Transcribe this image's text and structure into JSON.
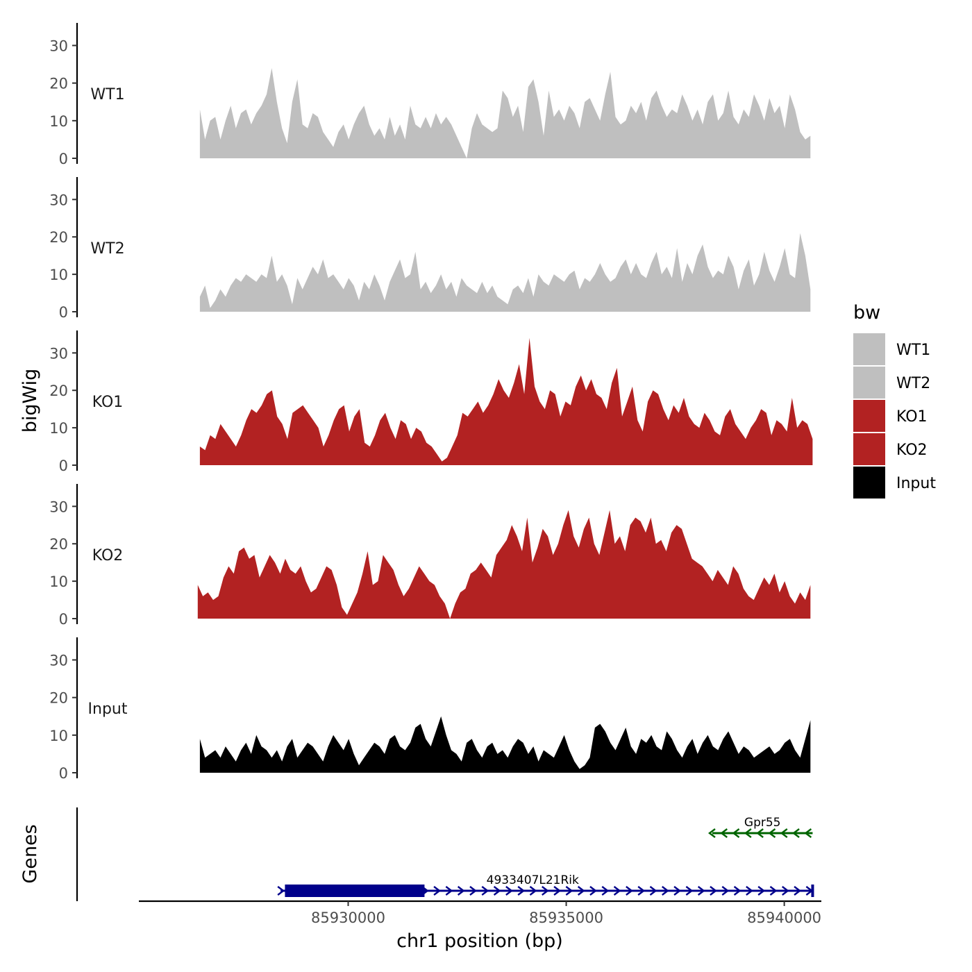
{
  "chart_data": {
    "type": "area",
    "title": "",
    "ylabel": "bigWig",
    "genes_label": "Genes",
    "xlabel": "chr1 position (bp)",
    "xlim": [
      85925200,
      85940850
    ],
    "ylim": [
      0,
      36
    ],
    "yticks": [
      0,
      10,
      20,
      30
    ],
    "ytick_labels": [
      "0",
      "10",
      "20",
      "30"
    ],
    "xticks": [
      85930000,
      85935000,
      85940000
    ],
    "xtick_labels": [
      "85930000",
      "85935000",
      "85940000"
    ],
    "grid": false,
    "legend": {
      "title": "bw",
      "position": "right",
      "entries": [
        {
          "label": "WT1",
          "color": "#bfbfbf"
        },
        {
          "label": "WT2",
          "color": "#bfbfbf"
        },
        {
          "label": "KO1",
          "color": "#b22222"
        },
        {
          "label": "KO2",
          "color": "#b22222"
        },
        {
          "label": "Input",
          "color": "#000000"
        }
      ]
    },
    "series": [
      {
        "name": "WT1",
        "color": "#bfbfbf",
        "x_start": 85926600,
        "x_end": 85940600,
        "values": [
          13,
          5,
          10,
          11,
          5,
          10,
          14,
          8,
          12,
          13,
          9,
          12,
          14,
          17,
          24,
          15,
          8,
          4,
          15,
          21,
          9,
          8,
          12,
          11,
          7,
          5,
          3,
          7,
          9,
          5,
          9,
          12,
          14,
          9,
          6,
          8,
          5,
          11,
          6,
          9,
          5,
          14,
          9,
          8,
          11,
          8,
          12,
          9,
          11,
          9,
          6,
          3,
          0,
          8,
          12,
          9,
          8,
          7,
          8,
          18,
          16,
          11,
          14,
          7,
          19,
          21,
          15,
          6,
          18,
          11,
          13,
          10,
          14,
          12,
          8,
          15,
          16,
          13,
          10,
          17,
          23,
          11,
          9,
          10,
          14,
          12,
          15,
          10,
          16,
          18,
          14,
          11,
          13,
          12,
          17,
          14,
          10,
          13,
          9,
          15,
          17,
          10,
          12,
          18,
          11,
          9,
          13,
          11,
          17,
          14,
          10,
          16,
          12,
          14,
          8,
          17,
          13,
          7,
          5,
          6
        ]
      },
      {
        "name": "WT2",
        "color": "#bfbfbf",
        "x_start": 85926600,
        "x_end": 85940600,
        "values": [
          4,
          7,
          1,
          3,
          6,
          4,
          7,
          9,
          8,
          10,
          9,
          8,
          10,
          9,
          15,
          8,
          10,
          7,
          2,
          9,
          6,
          9,
          12,
          10,
          14,
          9,
          10,
          8,
          6,
          9,
          7,
          3,
          8,
          6,
          10,
          7,
          3,
          8,
          11,
          14,
          9,
          10,
          16,
          6,
          8,
          5,
          7,
          10,
          6,
          8,
          4,
          9,
          7,
          6,
          5,
          8,
          5,
          7,
          4,
          3,
          2,
          6,
          7,
          5,
          9,
          4,
          10,
          8,
          7,
          10,
          9,
          8,
          10,
          11,
          6,
          9,
          8,
          10,
          13,
          10,
          8,
          9,
          12,
          14,
          10,
          13,
          10,
          9,
          13,
          16,
          10,
          12,
          9,
          17,
          8,
          13,
          10,
          15,
          18,
          12,
          9,
          11,
          10,
          15,
          12,
          6,
          11,
          14,
          7,
          10,
          16,
          11,
          8,
          12,
          17,
          10,
          9,
          21,
          15,
          6
        ]
      },
      {
        "name": "KO1",
        "color": "#b22222",
        "x_start": 85926600,
        "x_end": 85940650,
        "values": [
          5,
          4,
          8,
          7,
          11,
          9,
          7,
          5,
          8,
          12,
          15,
          14,
          16,
          19,
          20,
          13,
          11,
          7,
          14,
          15,
          16,
          14,
          12,
          10,
          5,
          8,
          12,
          15,
          16,
          9,
          13,
          15,
          6,
          5,
          8,
          12,
          14,
          10,
          7,
          12,
          11,
          7,
          10,
          9,
          6,
          5,
          3,
          1,
          2,
          5,
          8,
          14,
          13,
          15,
          17,
          14,
          16,
          19,
          23,
          20,
          18,
          22,
          27,
          19,
          34,
          21,
          17,
          15,
          20,
          19,
          13,
          17,
          16,
          21,
          24,
          20,
          23,
          19,
          18,
          15,
          22,
          26,
          13,
          17,
          21,
          12,
          9,
          17,
          20,
          19,
          15,
          12,
          16,
          14,
          18,
          13,
          11,
          10,
          14,
          12,
          9,
          8,
          13,
          15,
          11,
          9,
          7,
          10,
          12,
          15,
          14,
          8,
          12,
          11,
          9,
          18,
          10,
          12,
          11,
          7
        ]
      },
      {
        "name": "KO2",
        "color": "#b22222",
        "x_start": 85926550,
        "x_end": 85940600,
        "values": [
          9,
          6,
          7,
          5,
          6,
          11,
          14,
          12,
          18,
          19,
          16,
          17,
          11,
          14,
          17,
          15,
          12,
          16,
          13,
          12,
          14,
          10,
          7,
          8,
          11,
          14,
          13,
          9,
          3,
          1,
          4,
          7,
          12,
          18,
          9,
          10,
          17,
          15,
          13,
          9,
          6,
          8,
          11,
          14,
          12,
          10,
          9,
          6,
          4,
          0,
          4,
          7,
          8,
          12,
          13,
          15,
          13,
          11,
          17,
          19,
          21,
          25,
          22,
          18,
          27,
          15,
          19,
          24,
          22,
          17,
          20,
          25,
          29,
          22,
          19,
          24,
          27,
          20,
          17,
          23,
          29,
          20,
          22,
          18,
          25,
          27,
          26,
          23,
          27,
          20,
          21,
          18,
          23,
          25,
          24,
          20,
          16,
          15,
          14,
          12,
          10,
          13,
          11,
          9,
          14,
          12,
          8,
          6,
          5,
          8,
          11,
          9,
          12,
          7,
          10,
          6,
          4,
          7,
          5,
          9
        ]
      },
      {
        "name": "Input",
        "color": "#000000",
        "x_start": 85926600,
        "x_end": 85940600,
        "values": [
          9,
          4,
          5,
          6,
          4,
          7,
          5,
          3,
          6,
          8,
          5,
          10,
          7,
          6,
          4,
          6,
          3,
          7,
          9,
          4,
          6,
          8,
          7,
          5,
          3,
          7,
          10,
          8,
          6,
          9,
          5,
          2,
          4,
          6,
          8,
          7,
          5,
          9,
          10,
          7,
          6,
          8,
          12,
          13,
          9,
          7,
          11,
          15,
          10,
          6,
          5,
          3,
          8,
          9,
          6,
          4,
          7,
          8,
          5,
          6,
          4,
          7,
          9,
          8,
          5,
          7,
          3,
          6,
          5,
          4,
          7,
          10,
          6,
          3,
          1,
          2,
          4,
          12,
          13,
          11,
          8,
          6,
          9,
          12,
          7,
          5,
          9,
          8,
          10,
          7,
          6,
          11,
          9,
          6,
          4,
          7,
          9,
          5,
          8,
          10,
          7,
          6,
          9,
          11,
          8,
          5,
          7,
          6,
          4,
          5,
          6,
          7,
          5,
          6,
          8,
          9,
          6,
          4,
          9,
          14
        ]
      }
    ],
    "genes": [
      {
        "name": "4933407L21Rik",
        "start": 85928450,
        "end": 85940650,
        "strand": "+",
        "color": "#00008b",
        "exon_start": 85928550,
        "exon_end": 85931750
      },
      {
        "name": "Gpr55",
        "start": 85938350,
        "end": 85940650,
        "strand": "-",
        "color": "#006400"
      }
    ]
  }
}
